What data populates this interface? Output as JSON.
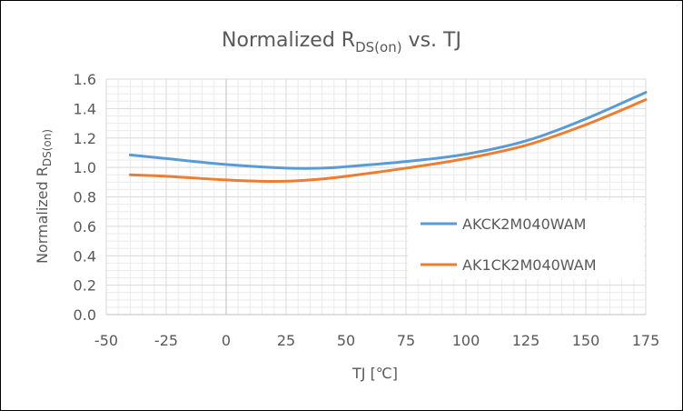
{
  "chart_data": {
    "type": "line",
    "title": {
      "main": "Normalized R",
      "sub": "DS(on)",
      "suffix": " vs. TJ"
    },
    "xlabel": "TJ [℃]",
    "ylabel": {
      "main": "Normalized R",
      "sub": "DS(on)"
    },
    "xlim": [
      -50,
      175
    ],
    "ylim": [
      0.0,
      1.6
    ],
    "x_ticks": [
      "-50",
      "-25",
      "0",
      "25",
      "50",
      "75",
      "100",
      "125",
      "150",
      "175"
    ],
    "y_ticks": [
      "0.0",
      "0.2",
      "0.4",
      "0.6",
      "0.8",
      "1.0",
      "1.2",
      "1.4",
      "1.6"
    ],
    "grid": true,
    "legend_position": "right",
    "series": [
      {
        "name": "AKCK2M040WAM",
        "color": "#5B9BD5",
        "x": [
          -40,
          -25,
          0,
          25,
          40,
          50,
          75,
          100,
          125,
          150,
          175
        ],
        "y": [
          1.085,
          1.06,
          1.02,
          0.995,
          0.995,
          1.005,
          1.04,
          1.09,
          1.18,
          1.33,
          1.51
        ]
      },
      {
        "name": "AK1CK2M040WAM",
        "color": "#ED7D31",
        "x": [
          -40,
          -25,
          0,
          20,
          35,
          50,
          75,
          100,
          125,
          150,
          175
        ],
        "y": [
          0.95,
          0.94,
          0.915,
          0.905,
          0.915,
          0.94,
          0.995,
          1.06,
          1.15,
          1.29,
          1.46
        ]
      }
    ]
  }
}
